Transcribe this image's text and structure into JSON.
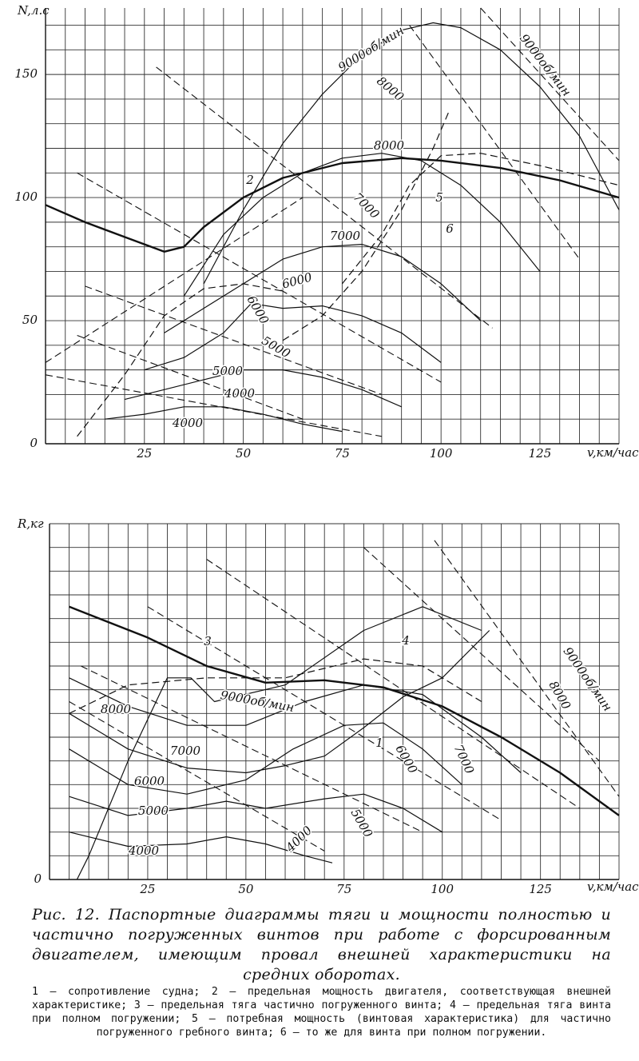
{
  "chart_data": [
    {
      "type": "line",
      "ylabel": "N,л.с",
      "xlabel": "v,км/час",
      "xlim": [
        0,
        145
      ],
      "ylim": [
        0,
        177
      ],
      "xticks": [
        25,
        50,
        75,
        100,
        125
      ],
      "yticks": [
        0,
        50,
        100,
        150
      ],
      "xgrid": [
        5,
        10,
        15,
        20,
        25,
        30,
        35,
        40,
        45,
        50,
        55,
        60,
        65,
        70,
        75,
        80,
        85,
        90,
        95,
        100,
        105,
        110,
        115,
        120,
        125,
        130,
        135,
        140,
        145
      ],
      "ygrid": [
        10,
        20,
        30,
        40,
        50,
        60,
        70,
        80,
        90,
        100,
        110,
        120,
        130,
        140,
        150,
        160,
        170
      ],
      "series": [
        {
          "color": "#111",
          "width": 2.4,
          "dash": false,
          "x": [
            0,
            10,
            20,
            30,
            35,
            40,
            50,
            60,
            75,
            90,
            100,
            115,
            130,
            145
          ],
          "values": [
            97,
            90,
            84,
            78,
            80,
            88,
            100,
            108,
            114,
            116,
            115,
            112,
            107,
            100
          ]
        },
        {
          "color": "#111",
          "width": 1.2,
          "dash": false,
          "x": [
            40,
            50,
            60,
            70,
            80,
            90,
            98,
            105,
            115,
            125,
            135,
            145
          ],
          "values": [
            65,
            95,
            122,
            142,
            158,
            168,
            171,
            169,
            160,
            145,
            125,
            95
          ]
        },
        {
          "color": "#111",
          "width": 1.2,
          "dash": false,
          "x": [
            35,
            45,
            55,
            65,
            75,
            85,
            95,
            105,
            115,
            125
          ],
          "values": [
            60,
            85,
            100,
            110,
            116,
            118,
            115,
            105,
            90,
            70
          ]
        },
        {
          "color": "#111",
          "width": 1.2,
          "dash": false,
          "x": [
            30,
            40,
            50,
            60,
            70,
            80,
            90,
            100,
            110
          ],
          "values": [
            45,
            55,
            65,
            75,
            80,
            81,
            76,
            65,
            50
          ]
        },
        {
          "color": "#111",
          "width": 1.2,
          "dash": false,
          "x": [
            25,
            35,
            45,
            52,
            60,
            70,
            80,
            90,
            100
          ],
          "values": [
            30,
            35,
            45,
            57,
            55,
            56,
            52,
            45,
            33
          ]
        },
        {
          "color": "#111",
          "width": 1.2,
          "dash": false,
          "x": [
            20,
            30,
            40,
            50,
            60,
            70,
            80,
            90
          ],
          "values": [
            18,
            22,
            26,
            30,
            30,
            27,
            22,
            15
          ]
        },
        {
          "color": "#111",
          "width": 1.2,
          "dash": false,
          "x": [
            15,
            25,
            35,
            45,
            55,
            65,
            75
          ],
          "values": [
            10,
            12,
            15,
            15,
            12,
            8,
            5
          ]
        },
        {
          "color": "#111",
          "width": 1.2,
          "dash": true,
          "x": [
            8,
            20,
            30,
            40,
            50,
            60
          ],
          "values": [
            3,
            28,
            52,
            63,
            65,
            62
          ]
        },
        {
          "color": "#111",
          "width": 1.2,
          "dash": true,
          "x": [
            60,
            70,
            80,
            90,
            98,
            102
          ],
          "values": [
            42,
            52,
            70,
            95,
            120,
            135
          ]
        },
        {
          "color": "#111",
          "width": 1.2,
          "dash": true,
          "x": [
            75,
            85,
            92,
            100,
            110,
            125,
            145
          ],
          "values": [
            65,
            85,
            105,
            117,
            118,
            113,
            105
          ]
        },
        {
          "color": "#111",
          "width": 1.1,
          "dash": true,
          "x": [
            0,
            65
          ],
          "values": [
            33,
            100
          ]
        },
        {
          "color": "#111",
          "width": 1.1,
          "dash": true,
          "x": [
            28,
            113
          ],
          "values": [
            153,
            47
          ]
        },
        {
          "color": "#111",
          "width": 1.1,
          "dash": true,
          "x": [
            8,
            100
          ],
          "values": [
            110,
            25
          ]
        },
        {
          "color": "#111",
          "width": 1.1,
          "dash": true,
          "x": [
            10,
            85
          ],
          "values": [
            64,
            20
          ]
        },
        {
          "color": "#111",
          "width": 1.1,
          "dash": true,
          "x": [
            8,
            65
          ],
          "values": [
            44,
            10
          ]
        },
        {
          "color": "#111",
          "width": 1.1,
          "dash": true,
          "x": [
            0,
            85
          ],
          "values": [
            28,
            3
          ]
        },
        {
          "color": "#111",
          "width": 1.1,
          "dash": true,
          "x": [
            110,
            145
          ],
          "values": [
            177,
            115
          ]
        },
        {
          "color": "#111",
          "width": 1.1,
          "dash": true,
          "x": [
            92,
            135
          ],
          "values": [
            170,
            75
          ]
        }
      ],
      "annotations": [
        "9000об/мин",
        "9000об/мин",
        "8000",
        "8000",
        "2",
        "7000",
        "7000",
        "6000",
        "6000",
        "5000",
        "5000",
        "4000",
        "4000",
        "5",
        "6"
      ]
    },
    {
      "type": "line",
      "ylabel": "R,кг",
      "xlabel": "v,км/час",
      "xlim": [
        0,
        145
      ],
      "ylim": [
        0,
        15
      ],
      "xticks": [
        25,
        50,
        75,
        100,
        125
      ],
      "yticks": [
        0
      ],
      "xgrid": [
        5,
        10,
        15,
        20,
        25,
        30,
        35,
        40,
        45,
        50,
        55,
        60,
        65,
        70,
        75,
        80,
        85,
        90,
        95,
        100,
        105,
        110,
        115,
        120,
        125,
        130,
        135,
        140,
        145
      ],
      "ygrid": [
        1,
        2,
        3,
        4,
        5,
        6,
        7,
        8,
        9,
        10,
        11,
        12,
        13,
        14,
        15
      ],
      "series": [
        {
          "color": "#111",
          "width": 2.4,
          "dash": false,
          "x": [
            5,
            25,
            40,
            55,
            70,
            85,
            100,
            115,
            130,
            145
          ],
          "values": [
            11.5,
            10.2,
            9.0,
            8.3,
            8.4,
            8.1,
            7.3,
            6.0,
            4.5,
            2.7
          ]
        },
        {
          "color": "#111",
          "width": 1.2,
          "dash": false,
          "x": [
            7,
            10,
            20,
            30,
            36,
            42,
            60,
            80,
            95,
            110
          ],
          "values": [
            0,
            1,
            5,
            8.5,
            8.5,
            7.5,
            8.2,
            10.5,
            11.5,
            10.5
          ]
        },
        {
          "color": "#111",
          "width": 1.2,
          "dash": false,
          "x": [
            5,
            20,
            35,
            50,
            65,
            80,
            95,
            110,
            120
          ],
          "values": [
            8.5,
            7.3,
            6.5,
            6.5,
            7.5,
            8.2,
            7.8,
            6,
            4.5
          ]
        },
        {
          "color": "#111",
          "width": 1.2,
          "dash": false,
          "x": [
            5,
            20,
            35,
            50,
            60,
            70,
            80,
            90,
            100,
            112
          ],
          "values": [
            7,
            5.5,
            4.7,
            4.5,
            4.8,
            5.2,
            6.4,
            7.7,
            8.5,
            10.5
          ]
        },
        {
          "color": "#111",
          "width": 1.2,
          "dash": false,
          "x": [
            5,
            20,
            35,
            50,
            62,
            75,
            85,
            95,
            105
          ],
          "values": [
            5.5,
            4,
            3.6,
            4.2,
            5.5,
            6.5,
            6.6,
            5.5,
            4
          ]
        },
        {
          "color": "#111",
          "width": 1.2,
          "dash": false,
          "x": [
            5,
            20,
            35,
            45,
            55,
            70,
            80,
            90,
            100
          ],
          "values": [
            3.5,
            2.7,
            3,
            3.3,
            3,
            3.4,
            3.6,
            3,
            2
          ]
        },
        {
          "color": "#111",
          "width": 1.2,
          "dash": false,
          "x": [
            5,
            20,
            35,
            45,
            55,
            65,
            72
          ],
          "values": [
            2,
            1.4,
            1.5,
            1.8,
            1.5,
            1,
            0.7
          ]
        },
        {
          "color": "#111",
          "width": 1.2,
          "dash": true,
          "x": [
            5,
            20,
            40,
            60,
            80,
            95,
            110
          ],
          "values": [
            7,
            8.2,
            8.5,
            8.5,
            9.3,
            9,
            7.5
          ]
        },
        {
          "color": "#111",
          "width": 1.1,
          "dash": true,
          "x": [
            5,
            70
          ],
          "values": [
            7.5,
            1.2
          ]
        },
        {
          "color": "#111",
          "width": 1.1,
          "dash": true,
          "x": [
            8,
            95
          ],
          "values": [
            9,
            2
          ]
        },
        {
          "color": "#111",
          "width": 1.1,
          "dash": true,
          "x": [
            25,
            115
          ],
          "values": [
            11.5,
            2.5
          ]
        },
        {
          "color": "#111",
          "width": 1.1,
          "dash": true,
          "x": [
            40,
            135
          ],
          "values": [
            13.5,
            3
          ]
        },
        {
          "color": "#111",
          "width": 1.1,
          "dash": true,
          "x": [
            80,
            140
          ],
          "values": [
            14,
            5
          ]
        },
        {
          "color": "#111",
          "width": 1.1,
          "dash": true,
          "x": [
            98,
            145
          ],
          "values": [
            14.3,
            3.5
          ]
        }
      ],
      "annotations": [
        "3",
        "4",
        "9000об/мин",
        "9000об/мин",
        "8000",
        "8000",
        "7000",
        "7000",
        "6000",
        "6000",
        "5000",
        "5000",
        "4000",
        "4000",
        "1"
      ]
    }
  ],
  "caption": {
    "title": "Рис. 12. Паспортные диаграммы тяги и мощности полностью и частично погруженных винтов при работе с форсированным двигателем, имеющим провал внешней характеристики на средних оборотах.",
    "notes": "1 — сопротивление судна; 2 — предельная мощность двигателя, соответствующая внешней характеристике; 3 — предельная тяга частично погруженного винта; 4 — предельная тяга винта при полном погружении; 5 — потребная мощность (винтовая характеристика) для частично погруженного гребного винта; 6 — то же для винта при полном погружении."
  }
}
